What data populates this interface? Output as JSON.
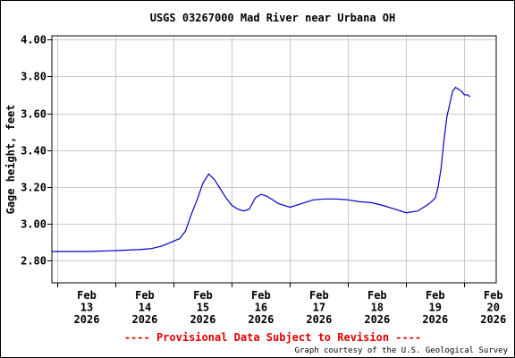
{
  "chart_data": {
    "type": "line",
    "title": "USGS 03267000 Mad River near Urbana OH",
    "xlabel": "",
    "ylabel": "Gage height, feet",
    "ylim": [
      2.68,
      4.02
    ],
    "yticks": [
      2.8,
      3.0,
      3.2,
      3.4,
      3.6,
      3.8,
      4.0
    ],
    "ytick_labels": [
      "2.80",
      "3.00",
      "3.20",
      "3.40",
      "3.60",
      "3.80",
      "4.00"
    ],
    "xlim": [
      12.9,
      20.55
    ],
    "xticks": [
      {
        "day": 13,
        "label": [
          "Feb",
          "13",
          "2026"
        ]
      },
      {
        "day": 14,
        "label": [
          "Feb",
          "14",
          "2026"
        ]
      },
      {
        "day": 15,
        "label": [
          "Feb",
          "15",
          "2026"
        ]
      },
      {
        "day": 16,
        "label": [
          "Feb",
          "16",
          "2026"
        ]
      },
      {
        "day": 17,
        "label": [
          "Feb",
          "17",
          "2026"
        ]
      },
      {
        "day": 18,
        "label": [
          "Feb",
          "18",
          "2026"
        ]
      },
      {
        "day": 19,
        "label": [
          "Feb",
          "19",
          "2026"
        ]
      },
      {
        "day": 20,
        "label": [
          "Feb",
          "20",
          "2026"
        ]
      }
    ],
    "grid": true,
    "series": [
      {
        "color": "#0000cc",
        "x": [
          12.9,
          13.5,
          14.0,
          14.4,
          14.6,
          14.8,
          14.95,
          15.1,
          15.2,
          15.3,
          15.4,
          15.5,
          15.6,
          15.7,
          15.8,
          15.9,
          16.0,
          16.1,
          16.2,
          16.3,
          16.4,
          16.5,
          16.6,
          16.7,
          16.8,
          17.0,
          17.2,
          17.4,
          17.6,
          17.8,
          18.0,
          18.2,
          18.4,
          18.6,
          18.8,
          19.0,
          19.2,
          19.3,
          19.4,
          19.5,
          19.55,
          19.6,
          19.65,
          19.7,
          19.75,
          19.8,
          19.85,
          19.9,
          19.95,
          20.0,
          20.05,
          20.1
        ],
        "y": [
          2.85,
          2.85,
          2.855,
          2.86,
          2.865,
          2.88,
          2.9,
          2.92,
          2.96,
          3.05,
          3.13,
          3.22,
          3.27,
          3.24,
          3.19,
          3.14,
          3.1,
          3.08,
          3.07,
          3.08,
          3.14,
          3.16,
          3.15,
          3.13,
          3.11,
          3.09,
          3.11,
          3.13,
          3.135,
          3.135,
          3.13,
          3.12,
          3.115,
          3.1,
          3.08,
          3.06,
          3.07,
          3.09,
          3.11,
          3.14,
          3.2,
          3.3,
          3.45,
          3.58,
          3.65,
          3.72,
          3.74,
          3.73,
          3.72,
          3.7,
          3.7,
          3.69
        ]
      }
    ],
    "footer_note": "---- Provisional Data Subject to Revision ----",
    "credit": "Graph courtesy of the U.S. Geological Survey"
  }
}
